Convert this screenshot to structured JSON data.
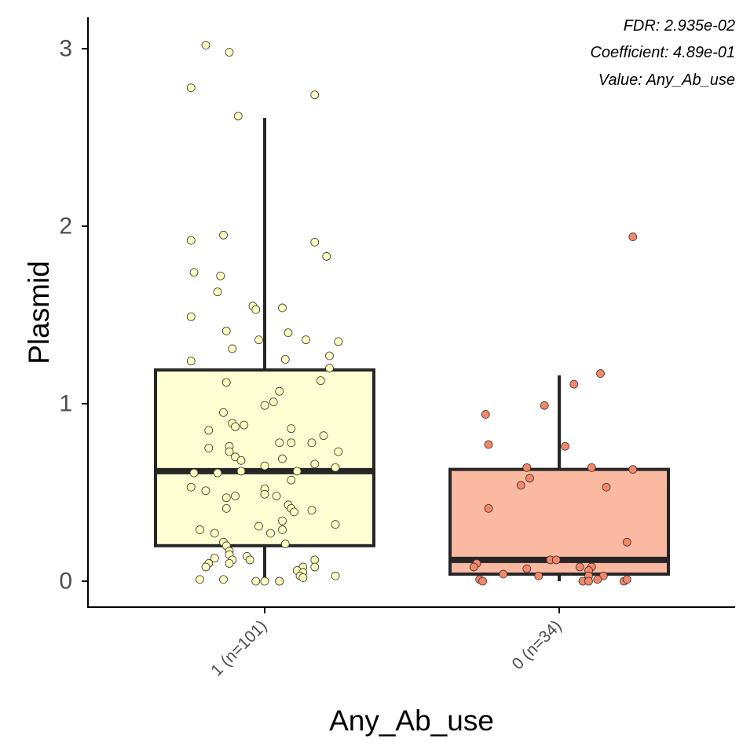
{
  "chart_data": {
    "type": "box",
    "xlabel": "Any_Ab_use",
    "ylabel": "Plasmid",
    "ylim": [
      -0.14,
      3.18
    ],
    "yticks": [
      0,
      1,
      2,
      3
    ],
    "annotations": [
      "FDR: 2.935e-02",
      "Coefficient: 4.89e-01",
      "Value: Any_Ab_use"
    ],
    "groups": [
      {
        "label": "1 (n=101)",
        "color": "#FFFFD4",
        "point_color": "#FFFFBF",
        "stats": {
          "min": 0.0,
          "q1": 0.2,
          "median": 0.62,
          "q3": 1.19,
          "max": 2.61
        },
        "points": [
          {
            "dx": -0.2,
            "y": 3.02
          },
          {
            "dx": -0.12,
            "y": 2.98
          },
          {
            "dx": -0.25,
            "y": 2.78
          },
          {
            "dx": 0.17,
            "y": 2.74
          },
          {
            "dx": -0.09,
            "y": 2.62
          },
          {
            "dx": -0.14,
            "y": 1.95
          },
          {
            "dx": -0.25,
            "y": 1.92
          },
          {
            "dx": 0.17,
            "y": 1.91
          },
          {
            "dx": 0.21,
            "y": 1.83
          },
          {
            "dx": -0.24,
            "y": 1.74
          },
          {
            "dx": -0.15,
            "y": 1.72
          },
          {
            "dx": -0.16,
            "y": 1.63
          },
          {
            "dx": -0.04,
            "y": 1.55
          },
          {
            "dx": 0.06,
            "y": 1.54
          },
          {
            "dx": -0.03,
            "y": 1.53
          },
          {
            "dx": -0.25,
            "y": 1.49
          },
          {
            "dx": -0.13,
            "y": 1.41
          },
          {
            "dx": 0.08,
            "y": 1.4
          },
          {
            "dx": -0.02,
            "y": 1.36
          },
          {
            "dx": 0.14,
            "y": 1.36
          },
          {
            "dx": 0.25,
            "y": 1.35
          },
          {
            "dx": -0.11,
            "y": 1.31
          },
          {
            "dx": 0.22,
            "y": 1.27
          },
          {
            "dx": -0.25,
            "y": 1.24
          },
          {
            "dx": 0.07,
            "y": 1.25
          },
          {
            "dx": 0.22,
            "y": 1.2
          },
          {
            "dx": -0.13,
            "y": 1.12
          },
          {
            "dx": 0.19,
            "y": 1.13
          },
          {
            "dx": 0.05,
            "y": 1.07
          },
          {
            "dx": 0.03,
            "y": 1.01
          },
          {
            "dx": 0.0,
            "y": 0.99
          },
          {
            "dx": -0.14,
            "y": 0.95
          },
          {
            "dx": -0.11,
            "y": 0.89
          },
          {
            "dx": -0.07,
            "y": 0.88
          },
          {
            "dx": -0.1,
            "y": 0.87
          },
          {
            "dx": -0.19,
            "y": 0.85
          },
          {
            "dx": 0.09,
            "y": 0.86
          },
          {
            "dx": 0.2,
            "y": 0.82
          },
          {
            "dx": 0.05,
            "y": 0.78
          },
          {
            "dx": 0.09,
            "y": 0.78
          },
          {
            "dx": 0.16,
            "y": 0.78
          },
          {
            "dx": -0.12,
            "y": 0.76
          },
          {
            "dx": -0.19,
            "y": 0.75
          },
          {
            "dx": -0.12,
            "y": 0.73
          },
          {
            "dx": 0.25,
            "y": 0.73
          },
          {
            "dx": -0.1,
            "y": 0.7
          },
          {
            "dx": 0.06,
            "y": 0.69
          },
          {
            "dx": -0.08,
            "y": 0.68
          },
          {
            "dx": 0.17,
            "y": 0.66
          },
          {
            "dx": 0.24,
            "y": 0.64
          },
          {
            "dx": 0.0,
            "y": 0.65
          },
          {
            "dx": -0.24,
            "y": 0.61
          },
          {
            "dx": -0.16,
            "y": 0.61
          },
          {
            "dx": -0.08,
            "y": 0.62
          },
          {
            "dx": 0.11,
            "y": 0.62
          },
          {
            "dx": 0.09,
            "y": 0.57
          },
          {
            "dx": -0.25,
            "y": 0.53
          },
          {
            "dx": -0.2,
            "y": 0.51
          },
          {
            "dx": 0.0,
            "y": 0.52
          },
          {
            "dx": -0.1,
            "y": 0.48
          },
          {
            "dx": -0.13,
            "y": 0.47
          },
          {
            "dx": 0.0,
            "y": 0.49
          },
          {
            "dx": 0.04,
            "y": 0.48
          },
          {
            "dx": 0.08,
            "y": 0.43
          },
          {
            "dx": -0.13,
            "y": 0.41
          },
          {
            "dx": 0.09,
            "y": 0.41
          },
          {
            "dx": 0.16,
            "y": 0.4
          },
          {
            "dx": 0.1,
            "y": 0.39
          },
          {
            "dx": 0.06,
            "y": 0.34
          },
          {
            "dx": -0.02,
            "y": 0.31
          },
          {
            "dx": 0.24,
            "y": 0.32
          },
          {
            "dx": -0.22,
            "y": 0.29
          },
          {
            "dx": 0.06,
            "y": 0.29
          },
          {
            "dx": -0.17,
            "y": 0.27
          },
          {
            "dx": 0.02,
            "y": 0.27
          },
          {
            "dx": -0.14,
            "y": 0.22
          },
          {
            "dx": -0.13,
            "y": 0.2
          },
          {
            "dx": 0.07,
            "y": 0.21
          },
          {
            "dx": -0.12,
            "y": 0.17
          },
          {
            "dx": -0.12,
            "y": 0.15
          },
          {
            "dx": -0.06,
            "y": 0.14
          },
          {
            "dx": -0.17,
            "y": 0.13
          },
          {
            "dx": -0.05,
            "y": 0.12
          },
          {
            "dx": -0.11,
            "y": 0.12
          },
          {
            "dx": 0.17,
            "y": 0.12
          },
          {
            "dx": -0.19,
            "y": 0.1
          },
          {
            "dx": -0.12,
            "y": 0.1
          },
          {
            "dx": -0.2,
            "y": 0.08
          },
          {
            "dx": 0.13,
            "y": 0.08
          },
          {
            "dx": 0.17,
            "y": 0.08
          },
          {
            "dx": 0.11,
            "y": 0.06
          },
          {
            "dx": 0.13,
            "y": 0.05
          },
          {
            "dx": 0.12,
            "y": 0.03
          },
          {
            "dx": 0.24,
            "y": 0.03
          },
          {
            "dx": 0.13,
            "y": 0.02
          },
          {
            "dx": -0.22,
            "y": 0.01
          },
          {
            "dx": -0.14,
            "y": 0.01
          },
          {
            "dx": -0.03,
            "y": 0.0
          },
          {
            "dx": 0.0,
            "y": 0.0
          },
          {
            "dx": 0.05,
            "y": 0.0
          },
          {
            "dx": 0.05,
            "y": 0.0
          }
        ]
      },
      {
        "label": "0 (n=34)",
        "color": "#FBB9A1",
        "point_color": "#F4866A",
        "stats": {
          "min": 0.0,
          "q1": 0.04,
          "median": 0.12,
          "q3": 0.63,
          "max": 1.16
        },
        "points": [
          {
            "dx": 0.25,
            "y": 1.94
          },
          {
            "dx": 0.14,
            "y": 1.17
          },
          {
            "dx": 0.05,
            "y": 1.11
          },
          {
            "dx": -0.05,
            "y": 0.99
          },
          {
            "dx": -0.25,
            "y": 0.94
          },
          {
            "dx": -0.24,
            "y": 0.77
          },
          {
            "dx": 0.02,
            "y": 0.76
          },
          {
            "dx": -0.11,
            "y": 0.64
          },
          {
            "dx": 0.11,
            "y": 0.64
          },
          {
            "dx": 0.25,
            "y": 0.63
          },
          {
            "dx": -0.1,
            "y": 0.58
          },
          {
            "dx": -0.13,
            "y": 0.54
          },
          {
            "dx": 0.16,
            "y": 0.53
          },
          {
            "dx": -0.24,
            "y": 0.41
          },
          {
            "dx": 0.23,
            "y": 0.22
          },
          {
            "dx": -0.03,
            "y": 0.12
          },
          {
            "dx": -0.01,
            "y": 0.12
          },
          {
            "dx": -0.28,
            "y": 0.1
          },
          {
            "dx": -0.29,
            "y": 0.08
          },
          {
            "dx": 0.07,
            "y": 0.08
          },
          {
            "dx": 0.11,
            "y": 0.08
          },
          {
            "dx": -0.11,
            "y": 0.07
          },
          {
            "dx": 0.1,
            "y": 0.06
          },
          {
            "dx": -0.19,
            "y": 0.04
          },
          {
            "dx": -0.07,
            "y": 0.03
          },
          {
            "dx": 0.1,
            "y": 0.03
          },
          {
            "dx": 0.15,
            "y": 0.03
          },
          {
            "dx": -0.27,
            "y": 0.01
          },
          {
            "dx": -0.26,
            "y": 0.0
          },
          {
            "dx": 0.08,
            "y": 0.0
          },
          {
            "dx": 0.1,
            "y": 0.0
          },
          {
            "dx": 0.13,
            "y": 0.01
          },
          {
            "dx": 0.22,
            "y": 0.0
          },
          {
            "dx": 0.23,
            "y": 0.01
          }
        ]
      }
    ]
  }
}
